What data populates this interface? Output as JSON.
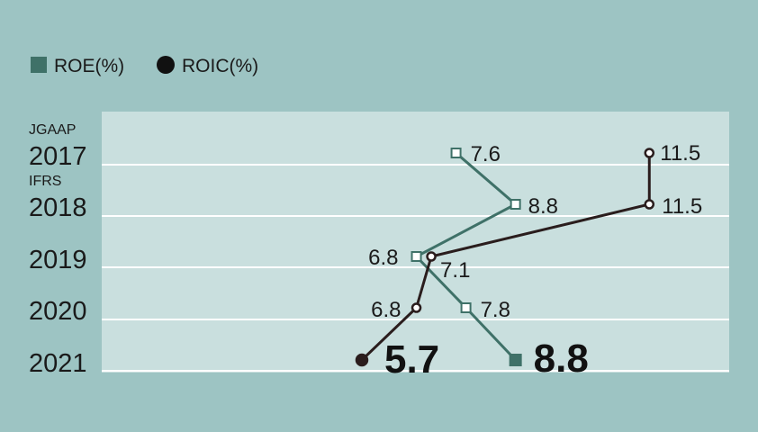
{
  "legend": {
    "roe": "ROE(%)",
    "roic": "ROIC(%)"
  },
  "colors": {
    "background": "#9dc4c3",
    "plot_area": "#c9dfde",
    "roe": "#3f7168",
    "roic": "#2a1d1d",
    "gridline": "#ffffff"
  },
  "chart_data": {
    "type": "line",
    "orientation": "horizontal-time-vertical",
    "categories": [
      "2017",
      "2018",
      "2019",
      "2020",
      "2021"
    ],
    "category_notes": {
      "2017": "JGAAP",
      "2018": "IFRS"
    },
    "series": [
      {
        "name": "ROE(%)",
        "marker": "square",
        "values": [
          7.6,
          8.8,
          6.8,
          7.8,
          8.8
        ]
      },
      {
        "name": "ROIC(%)",
        "marker": "circle",
        "values": [
          11.5,
          11.5,
          7.1,
          6.8,
          5.7
        ]
      }
    ],
    "value_labels": {
      "ROE(%)": [
        "7.6",
        "8.8",
        "6.8",
        "7.8",
        "8.8"
      ],
      "ROIC(%)": [
        "11.5",
        "11.5",
        "7.1",
        "6.8",
        "5.7"
      ]
    },
    "xlim": [
      0,
      12.8
    ],
    "grid": true,
    "legend_position": "top-left"
  }
}
